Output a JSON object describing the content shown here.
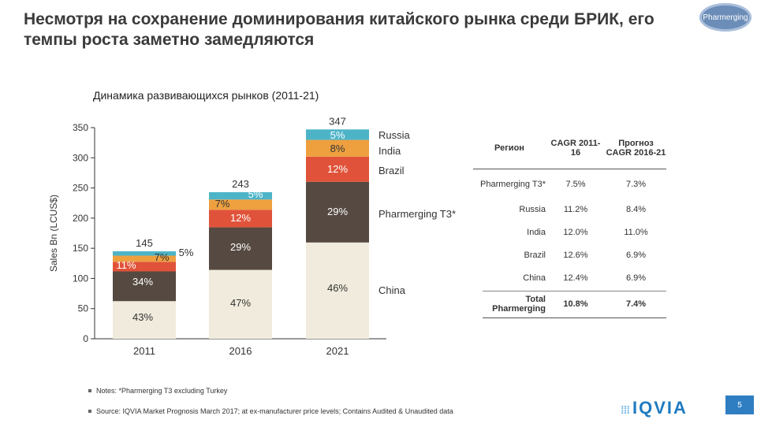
{
  "page": {
    "title": "Несмотря на сохранение доминирования китайского рынка среди БРИК, его темпы роста заметно замедляются",
    "badge": "Pharmerging",
    "page_number": "5",
    "logo": "IQVIA"
  },
  "chart_data": {
    "type": "bar",
    "stacked": true,
    "title": "Динамика развивающихся рынков (2011-21)",
    "ylabel": "Sales Bn (LCUS$)",
    "ylim": [
      0,
      350
    ],
    "yticks": [
      "0",
      "50",
      "100",
      "150",
      "200",
      "250",
      "300",
      "350"
    ],
    "categories": [
      "2011",
      "2016",
      "2021"
    ],
    "totals": [
      "145",
      "243",
      "347"
    ],
    "total_values": [
      145,
      243,
      347
    ],
    "series": [
      {
        "name": "China",
        "color": "#f0ebdc",
        "shares": [
          43,
          47,
          46
        ],
        "labels": [
          "43%",
          "47%",
          "46%"
        ]
      },
      {
        "name": "Pharmerging T3*",
        "color": "#554941",
        "shares": [
          34,
          29,
          29
        ],
        "labels": [
          "34%",
          "29%",
          "29%"
        ]
      },
      {
        "name": "Brazil",
        "color": "#e0533a",
        "shares": [
          11,
          12,
          12
        ],
        "labels": [
          "11%",
          "12%",
          "12%"
        ]
      },
      {
        "name": "India",
        "color": "#eea03f",
        "shares": [
          7,
          7,
          8
        ],
        "labels": [
          "7%",
          "7%",
          "8%"
        ]
      },
      {
        "name": "Russia",
        "color": "#4db4c8",
        "shares": [
          5,
          5,
          5
        ],
        "labels": [
          "5%",
          "5%",
          "5%"
        ]
      }
    ]
  },
  "table": {
    "headers": [
      "Регион",
      "CAGR 2011-16",
      "Прогноз CAGR 2016-21"
    ],
    "rows": [
      {
        "region": "Pharmerging T3*",
        "cagr": "7.5%",
        "forecast": "7.3%"
      },
      {
        "region": "Russia",
        "cagr": "11.2%",
        "forecast": "8.4%"
      },
      {
        "region": "India",
        "cagr": "12.0%",
        "forecast": "11.0%"
      },
      {
        "region": "Brazil",
        "cagr": "12.6%",
        "forecast": "6.9%"
      },
      {
        "region": "China",
        "cagr": "12.4%",
        "forecast": "6.9%"
      },
      {
        "region": "Total Pharmerging",
        "cagr": "10.8%",
        "forecast": "7.4%"
      }
    ]
  },
  "notes": [
    "Notes: *Pharmerging T3 excluding Turkey",
    "Source: IQVIA Market Prognosis March 2017; at ex-manufacturer price levels; Contains Audited & Unaudited data"
  ]
}
